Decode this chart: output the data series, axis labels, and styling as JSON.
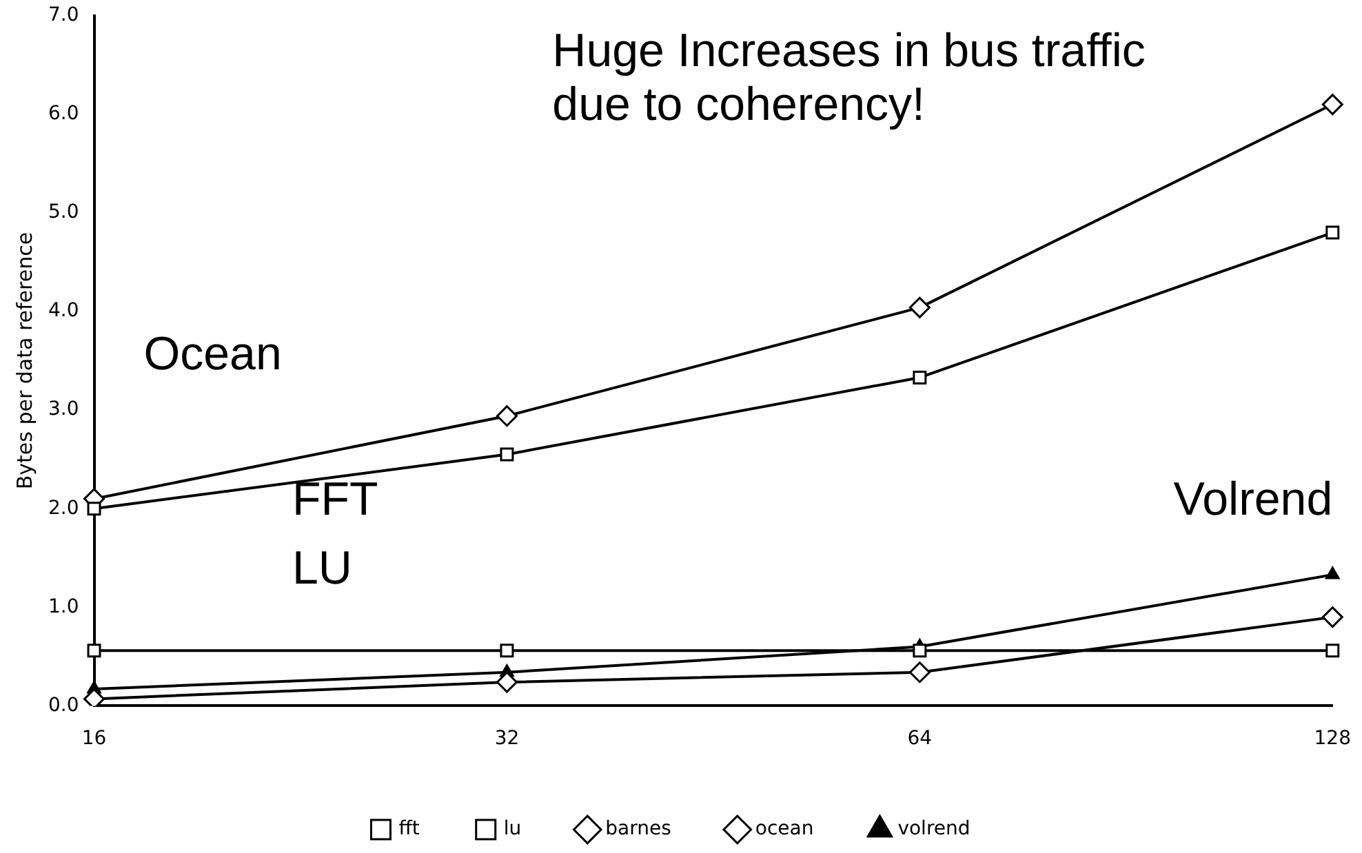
{
  "chart_data": {
    "type": "line",
    "ylabel": "Bytes per data reference",
    "categories": [
      "16",
      "32",
      "64",
      "128"
    ],
    "ylim": [
      0,
      7
    ],
    "yticks": [
      {
        "value": 0,
        "label": "0.0"
      },
      {
        "value": 1,
        "label": "1.0"
      },
      {
        "value": 2,
        "label": "2.0"
      },
      {
        "value": 3,
        "label": "3.0"
      },
      {
        "value": 4,
        "label": "4.0"
      },
      {
        "value": 5,
        "label": "5.0"
      },
      {
        "value": 6,
        "label": "6.0"
      },
      {
        "value": 7,
        "label": "7.0"
      }
    ],
    "grid": false,
    "legend": "bottom",
    "series": [
      {
        "name": "fft",
        "color": "#000000",
        "marker": "square",
        "values": [
          2.0,
          2.55,
          3.33,
          4.8
        ]
      },
      {
        "name": "lu",
        "color": "#000000",
        "marker": "square",
        "values": [
          0.56,
          0.56,
          0.56,
          0.56
        ]
      },
      {
        "name": "barnes",
        "color": "#000000",
        "marker": "diamond",
        "values": [
          0.07,
          0.24,
          0.34,
          0.9
        ]
      },
      {
        "name": "ocean",
        "color": "#000000",
        "marker": "diamond",
        "values": [
          2.1,
          2.94,
          4.04,
          6.1
        ]
      },
      {
        "name": "volrend",
        "color": "#000000",
        "marker": "triangle",
        "values": [
          0.17,
          0.34,
          0.6,
          1.33
        ]
      }
    ],
    "annotations": [
      "Huge Increases in bus traffic\ndue to coherency!",
      "Ocean",
      "FFT",
      "LU",
      "Volrend"
    ]
  }
}
